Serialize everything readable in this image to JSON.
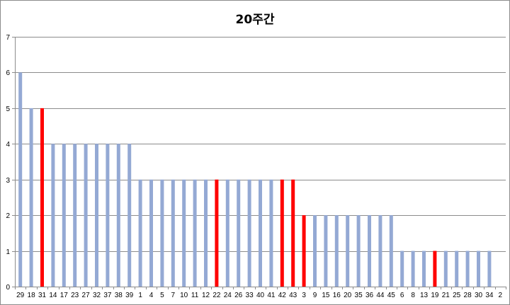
{
  "chart_data": {
    "type": "bar",
    "title": "20주간",
    "xlabel": "",
    "ylabel": "",
    "ylim": [
      0,
      7
    ],
    "yticks": [
      0,
      1,
      2,
      3,
      4,
      5,
      6,
      7
    ],
    "grid": true,
    "legend": "none",
    "categories": [
      "29",
      "18",
      "31",
      "14",
      "17",
      "23",
      "27",
      "32",
      "37",
      "38",
      "39",
      "1",
      "4",
      "5",
      "7",
      "10",
      "11",
      "12",
      "22",
      "24",
      "26",
      "33",
      "40",
      "41",
      "42",
      "43",
      "3",
      "9",
      "15",
      "16",
      "20",
      "35",
      "36",
      "44",
      "45",
      "6",
      "8",
      "13",
      "19",
      "21",
      "25",
      "28",
      "30",
      "34",
      "2"
    ],
    "values": [
      6,
      5,
      5,
      4,
      4,
      4,
      4,
      4,
      4,
      4,
      4,
      3,
      3,
      3,
      3,
      3,
      3,
      3,
      3,
      3,
      3,
      3,
      3,
      3,
      3,
      3,
      2,
      2,
      2,
      2,
      2,
      2,
      2,
      2,
      2,
      1,
      1,
      1,
      1,
      1,
      1,
      1,
      1,
      1,
      0
    ],
    "highlighted": [
      "31",
      "22",
      "42",
      "43",
      "3",
      "19"
    ],
    "colors": {
      "bar": "#94a9d4",
      "highlight": "#ff0000",
      "grid": "#8c8c8c",
      "axis": "#8c8c8c"
    }
  }
}
